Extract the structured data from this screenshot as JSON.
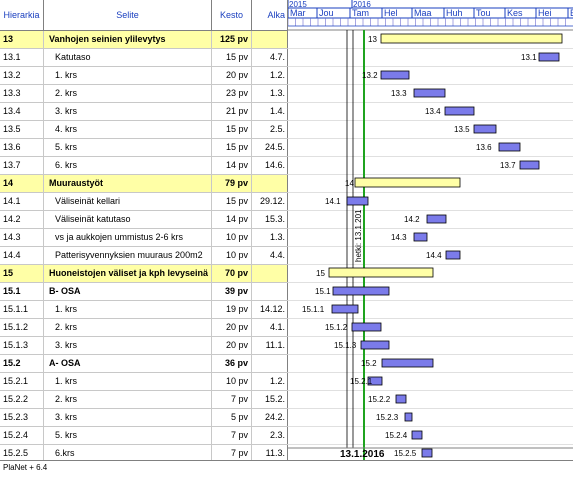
{
  "headers": {
    "id": "Hierarkia",
    "name": "Selite",
    "duration": "Kesto",
    "start": "Alka"
  },
  "timeline": {
    "years": [
      "2015",
      "2016"
    ],
    "months": [
      "Mar",
      "Jou",
      "Tam",
      "Hel",
      "Maa",
      "Huh",
      "Tou",
      "Kes",
      "Hei",
      "E"
    ],
    "today_line_label": "hetki: 13.1.201",
    "today_date": "13.1.2016"
  },
  "rows": [
    {
      "id": "13",
      "name": "Vanhojen seinien ylilevytys",
      "duration": "125 pv",
      "start": "",
      "summary": true,
      "bar_label": "13"
    },
    {
      "id": "13.1",
      "name": "Katutaso",
      "duration": "15 pv",
      "start": "4.7.",
      "summary": false,
      "bar_label": "13.1"
    },
    {
      "id": "13.2",
      "name": "1. krs",
      "duration": "20 pv",
      "start": "1.2.",
      "summary": false,
      "bar_label": "13.2"
    },
    {
      "id": "13.3",
      "name": "2. krs",
      "duration": "23 pv",
      "start": "1.3.",
      "summary": false,
      "bar_label": "13.3"
    },
    {
      "id": "13.4",
      "name": "3. krs",
      "duration": "21 pv",
      "start": "1.4.",
      "summary": false,
      "bar_label": "13.4"
    },
    {
      "id": "13.5",
      "name": "4. krs",
      "duration": "15 pv",
      "start": "2.5.",
      "summary": false,
      "bar_label": "13.5"
    },
    {
      "id": "13.6",
      "name": "5. krs",
      "duration": "15 pv",
      "start": "24.5.",
      "summary": false,
      "bar_label": "13.6"
    },
    {
      "id": "13.7",
      "name": "6. krs",
      "duration": "14 pv",
      "start": "14.6.",
      "summary": false,
      "bar_label": "13.7"
    },
    {
      "id": "14",
      "name": "Muuraustyöt",
      "duration": "79 pv",
      "start": "",
      "summary": true,
      "bar_label": "14"
    },
    {
      "id": "14.1",
      "name": "Väliseinät kellari",
      "duration": "15 pv",
      "start": "29.12.",
      "summary": false,
      "bar_label": "14.1"
    },
    {
      "id": "14.2",
      "name": "Väliseinät katutaso",
      "duration": "14 pv",
      "start": "15.3.",
      "summary": false,
      "bar_label": "14.2"
    },
    {
      "id": "14.3",
      "name": "vs ja aukkojen ummistus 2-6 krs",
      "duration": "10 pv",
      "start": "1.3.",
      "summary": false,
      "bar_label": "14.3"
    },
    {
      "id": "14.4",
      "name": "Patterisyvennyksien muuraus 200m2",
      "duration": "10 pv",
      "start": "4.4.",
      "summary": false,
      "bar_label": "14.4"
    },
    {
      "id": "15",
      "name": "Huoneistojen väliset ja kph levyseinä",
      "duration": "70 pv",
      "start": "",
      "summary": true,
      "bar_label": "15"
    },
    {
      "id": "15.1",
      "name": "B- OSA",
      "duration": "39 pv",
      "start": "",
      "summary": false,
      "bold": true,
      "bar_label": "15.1"
    },
    {
      "id": "15.1.1",
      "name": "1. krs",
      "duration": "19 pv",
      "start": "14.12.",
      "summary": false,
      "bar_label": "15.1.1"
    },
    {
      "id": "15.1.2",
      "name": "2. krs",
      "duration": "20 pv",
      "start": "4.1.",
      "summary": false,
      "bar_label": "15.1.2"
    },
    {
      "id": "15.1.3",
      "name": "3. krs",
      "duration": "20 pv",
      "start": "11.1.",
      "summary": false,
      "bar_label": "15.1.3"
    },
    {
      "id": "15.2",
      "name": "A- OSA",
      "duration": "36 pv",
      "start": "",
      "summary": false,
      "bold": true,
      "bar_label": "15.2"
    },
    {
      "id": "15.2.1",
      "name": "1. krs",
      "duration": "10 pv",
      "start": "1.2.",
      "summary": false,
      "bar_label": "15.2.1"
    },
    {
      "id": "15.2.2",
      "name": "2. krs",
      "duration": "7 pv",
      "start": "15.2.",
      "summary": false,
      "bar_label": "15.2.2"
    },
    {
      "id": "15.2.3",
      "name": "3. krs",
      "duration": "5 pv",
      "start": "24.2.",
      "summary": false,
      "bar_label": "15.2.3"
    },
    {
      "id": "15.2.4",
      "name": "5. krs",
      "duration": "7 pv",
      "start": "2.3.",
      "summary": false,
      "bar_label": "15.2.4"
    },
    {
      "id": "15.2.5",
      "name": "6.krs",
      "duration": "7 pv",
      "start": "11.3.",
      "summary": false,
      "bar_label": "15.2.5"
    }
  ],
  "footer": {
    "label": "PlaNet + 6.4"
  },
  "colors": {
    "header_text": "#1a3fbf",
    "summary_bg": "#ffffa6",
    "task_bar": "#7b7bea",
    "today_line": "#1fa31f"
  }
}
